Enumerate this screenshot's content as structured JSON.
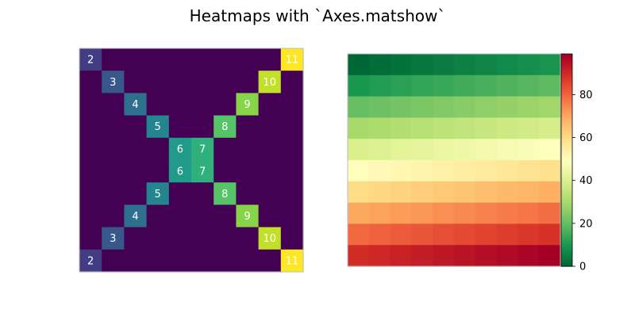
{
  "figure": {
    "title": "Heatmaps with `Axes.matshow`"
  },
  "chart_data": [
    {
      "type": "heatmap",
      "title": "",
      "colormap": "viridis",
      "vmin": 0,
      "vmax": 11,
      "show_values": true,
      "axes_visible": false,
      "grid": false,
      "rows": 10,
      "cols": 10,
      "values": [
        [
          2,
          0,
          0,
          0,
          0,
          0,
          0,
          0,
          0,
          11
        ],
        [
          0,
          3,
          0,
          0,
          0,
          0,
          0,
          0,
          10,
          0
        ],
        [
          0,
          0,
          4,
          0,
          0,
          0,
          0,
          9,
          0,
          0
        ],
        [
          0,
          0,
          0,
          5,
          0,
          0,
          8,
          0,
          0,
          0
        ],
        [
          0,
          0,
          0,
          0,
          6,
          7,
          0,
          0,
          0,
          0
        ],
        [
          0,
          0,
          0,
          0,
          6,
          7,
          0,
          0,
          0,
          0
        ],
        [
          0,
          0,
          0,
          5,
          0,
          0,
          8,
          0,
          0,
          0
        ],
        [
          0,
          0,
          4,
          0,
          0,
          0,
          0,
          9,
          0,
          0
        ],
        [
          0,
          3,
          0,
          0,
          0,
          0,
          0,
          0,
          10,
          0
        ],
        [
          2,
          0,
          0,
          0,
          0,
          0,
          0,
          0,
          0,
          11
        ]
      ]
    },
    {
      "type": "heatmap",
      "title": "",
      "colormap": "RdYlGn_r",
      "vmin": 0,
      "vmax": 99,
      "show_values": false,
      "axes_visible": false,
      "grid": false,
      "rows": 10,
      "cols": 10,
      "values": [
        [
          0,
          1,
          2,
          3,
          4,
          5,
          6,
          7,
          8,
          9
        ],
        [
          10,
          11,
          12,
          13,
          14,
          15,
          16,
          17,
          18,
          19
        ],
        [
          20,
          21,
          22,
          23,
          24,
          25,
          26,
          27,
          28,
          29
        ],
        [
          30,
          31,
          32,
          33,
          34,
          35,
          36,
          37,
          38,
          39
        ],
        [
          40,
          41,
          42,
          43,
          44,
          45,
          46,
          47,
          48,
          49
        ],
        [
          50,
          51,
          52,
          53,
          54,
          55,
          56,
          57,
          58,
          59
        ],
        [
          60,
          61,
          62,
          63,
          64,
          65,
          66,
          67,
          68,
          69
        ],
        [
          70,
          71,
          72,
          73,
          74,
          75,
          76,
          77,
          78,
          79
        ],
        [
          80,
          81,
          82,
          83,
          84,
          85,
          86,
          87,
          88,
          89
        ],
        [
          90,
          91,
          92,
          93,
          94,
          95,
          96,
          97,
          98,
          99
        ]
      ],
      "colorbar": {
        "placement": "right",
        "ticks": [
          0,
          20,
          40,
          60,
          80
        ]
      }
    }
  ]
}
